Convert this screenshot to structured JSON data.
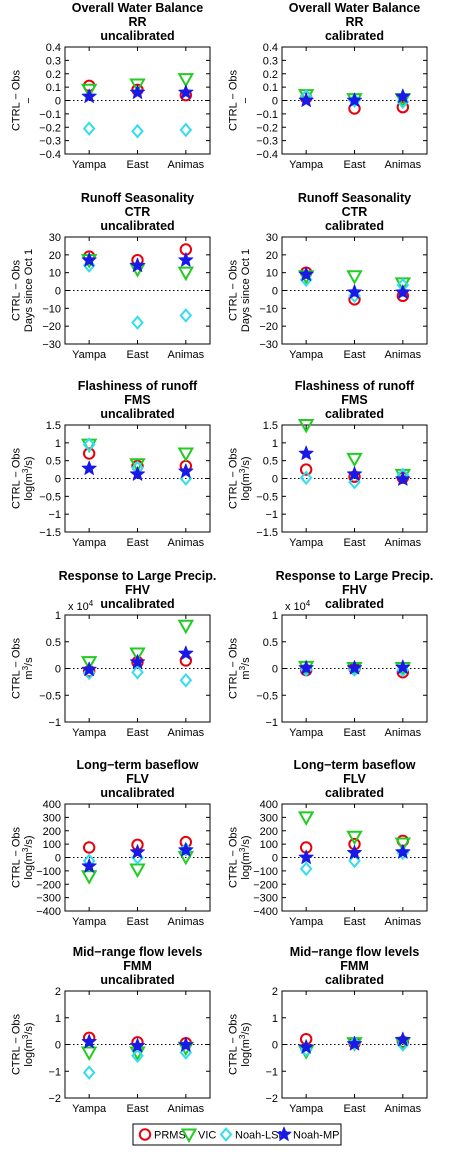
{
  "chart_data": [
    {
      "type": "scatter",
      "title": [
        "Overall Water Balance",
        "RR",
        "uncalibrated"
      ],
      "ylabel": [
        "CTRL − Obs",
        "−"
      ],
      "yticks": [
        "0.4",
        "0.3",
        "0.2",
        "0.1",
        "0",
        "−0.1",
        "−0.2",
        "−0.3",
        "−0.4"
      ],
      "yticks_values": [
        0.4,
        0.3,
        0.2,
        0.1,
        0,
        -0.1,
        -0.2,
        -0.3,
        -0.4
      ],
      "ylim": [
        -0.4,
        0.4
      ],
      "multiplier": "",
      "categories": [
        "Yampa",
        "East",
        "Animas"
      ],
      "series": [
        {
          "name": "PRMS",
          "values": [
            0.11,
            0.08,
            0.04
          ]
        },
        {
          "name": "VIC",
          "values": [
            0.08,
            0.12,
            0.16
          ]
        },
        {
          "name": "Noah-LSM",
          "values": [
            -0.21,
            -0.23,
            -0.22
          ]
        },
        {
          "name": "Noah-MP",
          "values": [
            0.03,
            0.06,
            0.06
          ]
        }
      ]
    },
    {
      "type": "scatter",
      "title": [
        "Overall Water Balance",
        "RR",
        "calibrated"
      ],
      "ylabel": [
        "CTRL − Obs",
        "−"
      ],
      "yticks": [
        "0.4",
        "0.3",
        "0.2",
        "0.1",
        "0",
        "−0.1",
        "−0.2",
        "−0.3",
        "−0.4"
      ],
      "yticks_values": [
        0.4,
        0.3,
        0.2,
        0.1,
        0,
        -0.1,
        -0.2,
        -0.3,
        -0.4
      ],
      "ylim": [
        -0.4,
        0.4
      ],
      "multiplier": "",
      "categories": [
        "Yampa",
        "East",
        "Animas"
      ],
      "series": [
        {
          "name": "PRMS",
          "values": [
            0.02,
            -0.06,
            -0.05
          ]
        },
        {
          "name": "VIC",
          "values": [
            0.04,
            0.01,
            0.01
          ]
        },
        {
          "name": "Noah-LSM",
          "values": [
            0.03,
            0.0,
            -0.01
          ]
        },
        {
          "name": "Noah-MP",
          "values": [
            0.0,
            0.0,
            0.03
          ]
        }
      ]
    },
    {
      "type": "scatter",
      "title": [
        "Runoff Seasonality",
        "CTR",
        "uncalibrated"
      ],
      "ylabel": [
        "CTRL − Obs",
        "Days since Oct 1"
      ],
      "yticks": [
        "30",
        "20",
        "10",
        "0",
        "−10",
        "−20",
        "−30"
      ],
      "yticks_values": [
        30,
        20,
        10,
        0,
        -10,
        -20,
        -30
      ],
      "ylim": [
        -30,
        30
      ],
      "multiplier": "",
      "categories": [
        "Yampa",
        "East",
        "Animas"
      ],
      "series": [
        {
          "name": "PRMS",
          "values": [
            19,
            17,
            23
          ]
        },
        {
          "name": "VIC",
          "values": [
            17,
            12,
            10
          ]
        },
        {
          "name": "Noah-LSM",
          "values": [
            14,
            -18,
            -14
          ]
        },
        {
          "name": "Noah-MP",
          "values": [
            17,
            14,
            17
          ]
        }
      ]
    },
    {
      "type": "scatter",
      "title": [
        "Runoff Seasonality",
        "CTR",
        "calibrated"
      ],
      "ylabel": [
        "CTRL − Obs",
        "Days since Oct 1"
      ],
      "yticks": [
        "30",
        "20",
        "10",
        "0",
        "−10",
        "−20",
        "−30"
      ],
      "yticks_values": [
        30,
        20,
        10,
        0,
        -10,
        -20,
        -30
      ],
      "ylim": [
        -30,
        30
      ],
      "multiplier": "",
      "categories": [
        "Yampa",
        "East",
        "Animas"
      ],
      "series": [
        {
          "name": "PRMS",
          "values": [
            10,
            -5,
            -3
          ]
        },
        {
          "name": "VIC",
          "values": [
            8,
            8,
            4
          ]
        },
        {
          "name": "Noah-LSM",
          "values": [
            6,
            -3,
            3
          ]
        },
        {
          "name": "Noah-MP",
          "values": [
            9,
            -1,
            -1
          ]
        }
      ]
    },
    {
      "type": "scatter",
      "title": [
        "Flashiness of runoff",
        "FMS",
        "uncalibrated"
      ],
      "ylabel": [
        "CTRL − Obs",
        "log(m3/s)"
      ],
      "yticks": [
        "1.5",
        "1",
        "0.5",
        "0",
        "−0.5",
        "−1",
        "−1.5"
      ],
      "yticks_values": [
        1.5,
        1,
        0.5,
        0,
        -0.5,
        -1,
        -1.5
      ],
      "ylim": [
        -1.5,
        1.5
      ],
      "multiplier": "",
      "categories": [
        "Yampa",
        "East",
        "Animas"
      ],
      "series": [
        {
          "name": "PRMS",
          "values": [
            0.7,
            0.35,
            0.35
          ]
        },
        {
          "name": "VIC",
          "values": [
            0.95,
            0.4,
            0.7
          ]
        },
        {
          "name": "Noah-LSM",
          "values": [
            0.95,
            0.3,
            0.0
          ]
        },
        {
          "name": "Noah-MP",
          "values": [
            0.28,
            0.12,
            0.2
          ]
        }
      ]
    },
    {
      "type": "scatter",
      "title": [
        "Flashiness of runoff",
        "FMS",
        "calibrated"
      ],
      "ylabel": [
        "CTRL − Obs",
        "log(m3/s)"
      ],
      "yticks": [
        "1.5",
        "1",
        "0.5",
        "0",
        "−0.5",
        "−1",
        "−1.5"
      ],
      "yticks_values": [
        1.5,
        1,
        0.5,
        0,
        -0.5,
        -1,
        -1.5
      ],
      "ylim": [
        -1.5,
        1.5
      ],
      "multiplier": "",
      "categories": [
        "Yampa",
        "East",
        "Animas"
      ],
      "series": [
        {
          "name": "PRMS",
          "values": [
            0.25,
            0.05,
            0.02
          ]
        },
        {
          "name": "VIC",
          "values": [
            1.5,
            0.55,
            0.1
          ]
        },
        {
          "name": "Noah-LSM",
          "values": [
            0.02,
            -0.1,
            0.1
          ]
        },
        {
          "name": "Noah-MP",
          "values": [
            0.7,
            0.12,
            -0.02
          ]
        }
      ]
    },
    {
      "type": "scatter",
      "title": [
        "Response to Large Precip.",
        "FHV",
        "uncalibrated"
      ],
      "ylabel": [
        "CTRL − Obs",
        "m3/s"
      ],
      "yticks": [
        "1",
        "0.5",
        "0",
        "−0.5",
        "−1"
      ],
      "yticks_values": [
        1,
        0.5,
        0,
        -0.5,
        -1
      ],
      "ylim": [
        -1,
        1
      ],
      "multiplier": "x 10",
      "multiplier_exp": "4",
      "categories": [
        "Yampa",
        "East",
        "Animas"
      ],
      "series": [
        {
          "name": "PRMS",
          "values": [
            -0.05,
            0.12,
            0.15
          ]
        },
        {
          "name": "VIC",
          "values": [
            0.12,
            0.28,
            0.8
          ]
        },
        {
          "name": "Noah-LSM",
          "values": [
            -0.08,
            -0.07,
            -0.22
          ]
        },
        {
          "name": "Noah-MP",
          "values": [
            -0.02,
            0.12,
            0.28
          ]
        }
      ]
    },
    {
      "type": "scatter",
      "title": [
        "Response to Large Precip.",
        "FHV",
        "calibrated"
      ],
      "ylabel": [
        "CTRL − Obs",
        "m3/s"
      ],
      "yticks": [
        "1",
        "0.5",
        "0",
        "−0.5",
        "−1"
      ],
      "yticks_values": [
        1,
        0.5,
        0,
        -0.5,
        -1
      ],
      "ylim": [
        -1,
        1
      ],
      "multiplier": "x 10",
      "multiplier_exp": "4",
      "categories": [
        "Yampa",
        "East",
        "Animas"
      ],
      "series": [
        {
          "name": "PRMS",
          "values": [
            -0.03,
            0.0,
            -0.07
          ]
        },
        {
          "name": "VIC",
          "values": [
            0.03,
            0.01,
            0.01
          ]
        },
        {
          "name": "Noah-LSM",
          "values": [
            -0.02,
            -0.02,
            -0.03
          ]
        },
        {
          "name": "Noah-MP",
          "values": [
            0.01,
            0.01,
            0.02
          ]
        }
      ]
    },
    {
      "type": "scatter",
      "title": [
        "Long−term baseflow",
        "FLV",
        "uncalibrated"
      ],
      "ylabel": [
        "CTRL − Obs",
        "log(m3/s)"
      ],
      "yticks": [
        "400",
        "300",
        "200",
        "100",
        "0",
        "−100",
        "−200",
        "−300",
        "−400"
      ],
      "yticks_values": [
        400,
        300,
        200,
        100,
        0,
        -100,
        -200,
        -300,
        -400
      ],
      "ylim": [
        -400,
        400
      ],
      "multiplier": "",
      "categories": [
        "Yampa",
        "East",
        "Animas"
      ],
      "series": [
        {
          "name": "PRMS",
          "values": [
            75,
            95,
            115
          ]
        },
        {
          "name": "VIC",
          "values": [
            -140,
            -90,
            5
          ]
        },
        {
          "name": "Noah-LSM",
          "values": [
            -25,
            0,
            60
          ]
        },
        {
          "name": "Noah-MP",
          "values": [
            -65,
            40,
            55
          ]
        }
      ]
    },
    {
      "type": "scatter",
      "title": [
        "Long−term baseflow",
        "FLV",
        "calibrated"
      ],
      "ylabel": [
        "CTRL − Obs",
        "log(m3/s)"
      ],
      "yticks": [
        "400",
        "300",
        "200",
        "100",
        "0",
        "−100",
        "−200",
        "−300",
        "−400"
      ],
      "yticks_values": [
        400,
        300,
        200,
        100,
        0,
        -100,
        -200,
        -300,
        -400
      ],
      "ylim": [
        -400,
        400
      ],
      "multiplier": "",
      "categories": [
        "Yampa",
        "East",
        "Animas"
      ],
      "series": [
        {
          "name": "PRMS",
          "values": [
            75,
            100,
            125
          ]
        },
        {
          "name": "VIC",
          "values": [
            300,
            155,
            105
          ]
        },
        {
          "name": "Noah-LSM",
          "values": [
            -85,
            -25,
            35
          ]
        },
        {
          "name": "Noah-MP",
          "values": [
            0,
            35,
            40
          ]
        }
      ]
    },
    {
      "type": "scatter",
      "title": [
        "Mid−range flow levels",
        "FMM",
        "uncalibrated"
      ],
      "ylabel": [
        "CTRL − Obs",
        "log(m3/s)"
      ],
      "yticks": [
        "2",
        "1",
        "0",
        "−1",
        "−2"
      ],
      "yticks_values": [
        2,
        1,
        0,
        -1,
        -2
      ],
      "ylim": [
        -2,
        2
      ],
      "multiplier": "",
      "categories": [
        "Yampa",
        "East",
        "Animas"
      ],
      "series": [
        {
          "name": "PRMS",
          "values": [
            0.25,
            0.08,
            0.05
          ]
        },
        {
          "name": "VIC",
          "values": [
            -0.3,
            -0.3,
            -0.12
          ]
        },
        {
          "name": "Noah-LSM",
          "values": [
            -1.05,
            -0.42,
            -0.3
          ]
        },
        {
          "name": "Noah-MP",
          "values": [
            0.1,
            -0.05,
            -0.02
          ]
        }
      ]
    },
    {
      "type": "scatter",
      "title": [
        "Mid−range flow levels",
        "FMM",
        "calibrated"
      ],
      "ylabel": [
        "CTRL − Obs",
        "log(m3/s)"
      ],
      "yticks": [
        "2",
        "1",
        "0",
        "−1",
        "−2"
      ],
      "yticks_values": [
        2,
        1,
        0,
        -1,
        -2
      ],
      "ylim": [
        -2,
        2
      ],
      "multiplier": "",
      "categories": [
        "Yampa",
        "East",
        "Animas"
      ],
      "series": [
        {
          "name": "PRMS",
          "values": [
            0.2,
            0.05,
            0.1
          ]
        },
        {
          "name": "VIC",
          "values": [
            -0.25,
            0.05,
            0.05
          ]
        },
        {
          "name": "Noah-LSM",
          "values": [
            -0.2,
            0.05,
            0.0
          ]
        },
        {
          "name": "Noah-MP",
          "values": [
            -0.1,
            0.02,
            0.18
          ]
        }
      ]
    }
  ],
  "legend": {
    "placement": "bottom",
    "entries": [
      {
        "name": "PRMS",
        "marker": "circle",
        "color": "#e8000b"
      },
      {
        "name": "VIC",
        "marker": "triangle-down",
        "color": "#22cc22"
      },
      {
        "name": "Noah-LSM",
        "marker": "diamond",
        "color": "#33ddee"
      },
      {
        "name": "Noah-MP",
        "marker": "star",
        "color": "#1a1ae6"
      }
    ]
  },
  "colors": {
    "PRMS": "#e8000b",
    "VIC": "#22cc22",
    "Noah-LSM": "#33ddee",
    "Noah-MP": "#1a1ae6"
  }
}
